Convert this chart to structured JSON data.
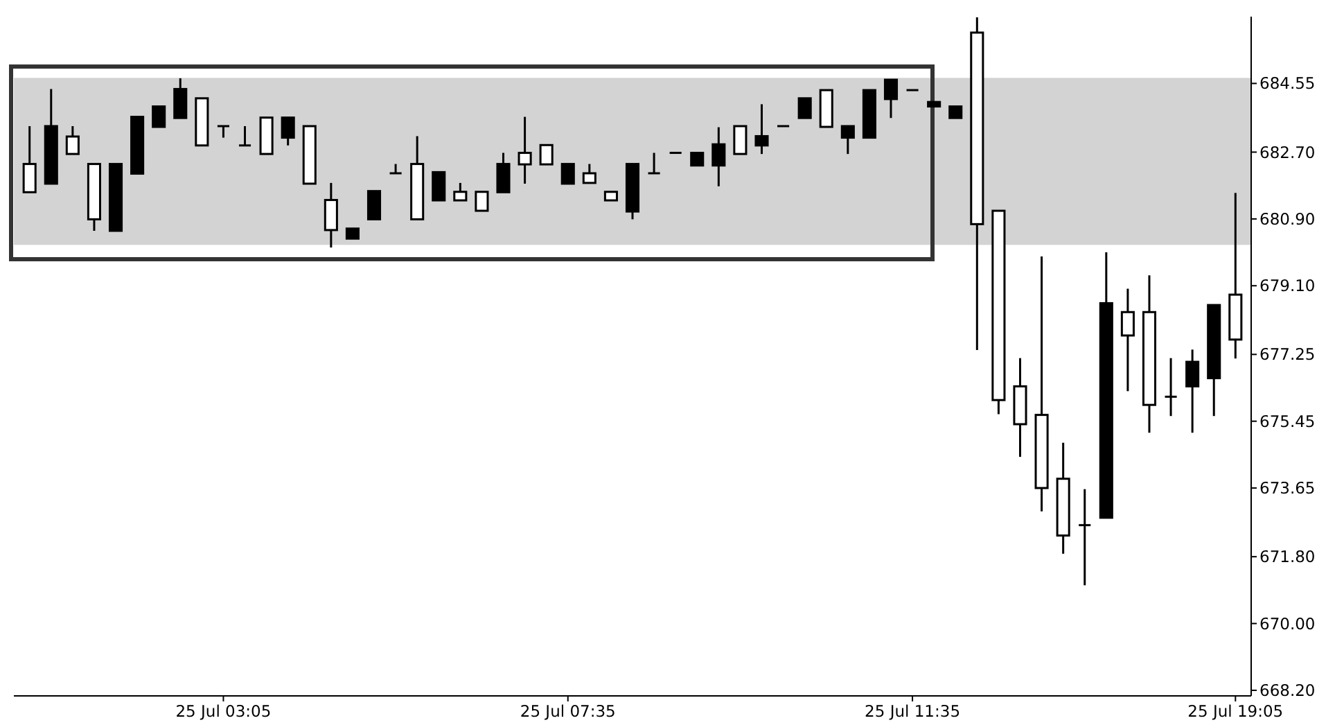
{
  "chart_data": {
    "type": "candlestick",
    "categories": [
      null,
      null,
      null,
      null,
      null,
      null,
      null,
      null,
      null,
      "25 Jul 03:05",
      null,
      null,
      null,
      null,
      null,
      null,
      null,
      null,
      null,
      null,
      null,
      null,
      null,
      null,
      null,
      "25 Jul 07:35",
      null,
      null,
      null,
      null,
      null,
      null,
      null,
      null,
      null,
      null,
      null,
      null,
      null,
      null,
      null,
      "25 Jul 11:35",
      null,
      null,
      null,
      null,
      null,
      null,
      null,
      null,
      null,
      null,
      null,
      null,
      null,
      null,
      "25 Jul 19:05"
    ],
    "ohlc": [
      [
        682.38,
        683.4,
        681.62,
        681.62
      ],
      [
        681.85,
        684.4,
        681.85,
        683.4
      ],
      [
        683.12,
        683.4,
        682.65,
        682.65
      ],
      [
        682.38,
        682.38,
        680.58,
        680.89
      ],
      [
        680.58,
        682.38,
        680.58,
        682.38
      ],
      [
        682.12,
        683.65,
        682.12,
        683.65
      ],
      [
        683.38,
        683.93,
        683.38,
        683.93
      ],
      [
        683.62,
        684.69,
        683.62,
        684.4
      ],
      [
        684.15,
        684.15,
        682.88,
        682.88
      ],
      [
        683.4,
        683.4,
        683.09,
        683.4
      ],
      [
        682.88,
        683.4,
        682.88,
        682.88
      ],
      [
        683.63,
        683.63,
        682.65,
        682.65
      ],
      [
        683.09,
        683.63,
        682.88,
        683.63
      ],
      [
        683.4,
        683.4,
        681.85,
        681.85
      ],
      [
        681.41,
        681.87,
        680.13,
        680.6
      ],
      [
        680.37,
        680.64,
        680.37,
        680.64
      ],
      [
        680.89,
        681.65,
        680.89,
        681.65
      ],
      [
        682.13,
        682.38,
        682.13,
        682.13
      ],
      [
        682.38,
        683.13,
        680.89,
        680.89
      ],
      [
        681.4,
        682.16,
        681.4,
        682.16
      ],
      [
        681.63,
        681.87,
        681.4,
        681.4
      ],
      [
        681.63,
        681.63,
        681.12,
        681.12
      ],
      [
        681.62,
        682.68,
        681.62,
        682.38
      ],
      [
        682.68,
        683.65,
        681.85,
        682.37
      ],
      [
        682.89,
        682.89,
        682.37,
        682.37
      ],
      [
        681.85,
        682.38,
        681.85,
        682.38
      ],
      [
        682.13,
        682.38,
        681.87,
        681.87
      ],
      [
        681.63,
        681.63,
        681.4,
        681.4
      ],
      [
        681.1,
        682.38,
        680.89,
        682.38
      ],
      [
        682.13,
        682.68,
        682.13,
        682.13
      ],
      [
        682.68,
        682.68,
        682.68,
        682.68
      ],
      [
        682.34,
        682.68,
        682.34,
        682.68
      ],
      [
        682.34,
        683.37,
        681.78,
        682.91
      ],
      [
        683.4,
        683.4,
        682.65,
        682.65
      ],
      [
        682.88,
        683.99,
        682.65,
        683.13
      ],
      [
        683.4,
        683.4,
        683.4,
        683.4
      ],
      [
        683.62,
        684.15,
        683.62,
        684.15
      ],
      [
        684.37,
        684.37,
        683.38,
        683.38
      ],
      [
        683.09,
        683.4,
        682.65,
        683.4
      ],
      [
        683.09,
        684.37,
        683.09,
        684.37
      ],
      [
        684.13,
        684.65,
        683.62,
        684.65
      ],
      [
        684.37,
        684.37,
        684.37,
        684.37
      ],
      [
        683.93,
        684.05,
        683.93,
        684.05
      ],
      [
        683.62,
        683.93,
        683.62,
        683.93
      ],
      [
        685.92,
        686.33,
        677.37,
        680.76
      ],
      [
        681.12,
        681.12,
        675.64,
        676.02
      ],
      [
        676.39,
        677.15,
        674.49,
        675.37
      ],
      [
        675.62,
        679.89,
        673.02,
        673.65
      ],
      [
        673.9,
        674.87,
        671.88,
        672.37
      ],
      [
        672.65,
        673.62,
        671.03,
        672.65
      ],
      [
        672.85,
        680.0,
        672.85,
        678.63
      ],
      [
        678.39,
        679.02,
        676.26,
        677.76
      ],
      [
        678.39,
        679.38,
        675.14,
        675.89
      ],
      [
        676.11,
        677.15,
        675.59,
        676.11
      ],
      [
        676.39,
        677.38,
        675.14,
        677.05
      ],
      [
        676.61,
        678.58,
        675.59,
        678.58
      ],
      [
        678.86,
        681.6,
        677.14,
        677.65
      ]
    ],
    "ylim": [
      668.05,
      686.35
    ],
    "yticks": [
      {
        "value": 668.2,
        "label": "668.20"
      },
      {
        "value": 670,
        "label": "670.00"
      },
      {
        "value": 671.8,
        "label": "671.80"
      },
      {
        "value": 673.65,
        "label": "673.65"
      },
      {
        "value": 675.45,
        "label": "675.45"
      },
      {
        "value": 677.25,
        "label": "677.25"
      },
      {
        "value": 679.1,
        "label": "679.10"
      },
      {
        "value": 680.9,
        "label": "680.90"
      },
      {
        "value": 682.7,
        "label": "682.70"
      },
      {
        "value": 684.55,
        "label": "684.55"
      }
    ],
    "bands": [
      {
        "axis": "y",
        "from": 680.2,
        "to": 684.7,
        "color": "#d3d3d3"
      }
    ],
    "grid": false
  }
}
